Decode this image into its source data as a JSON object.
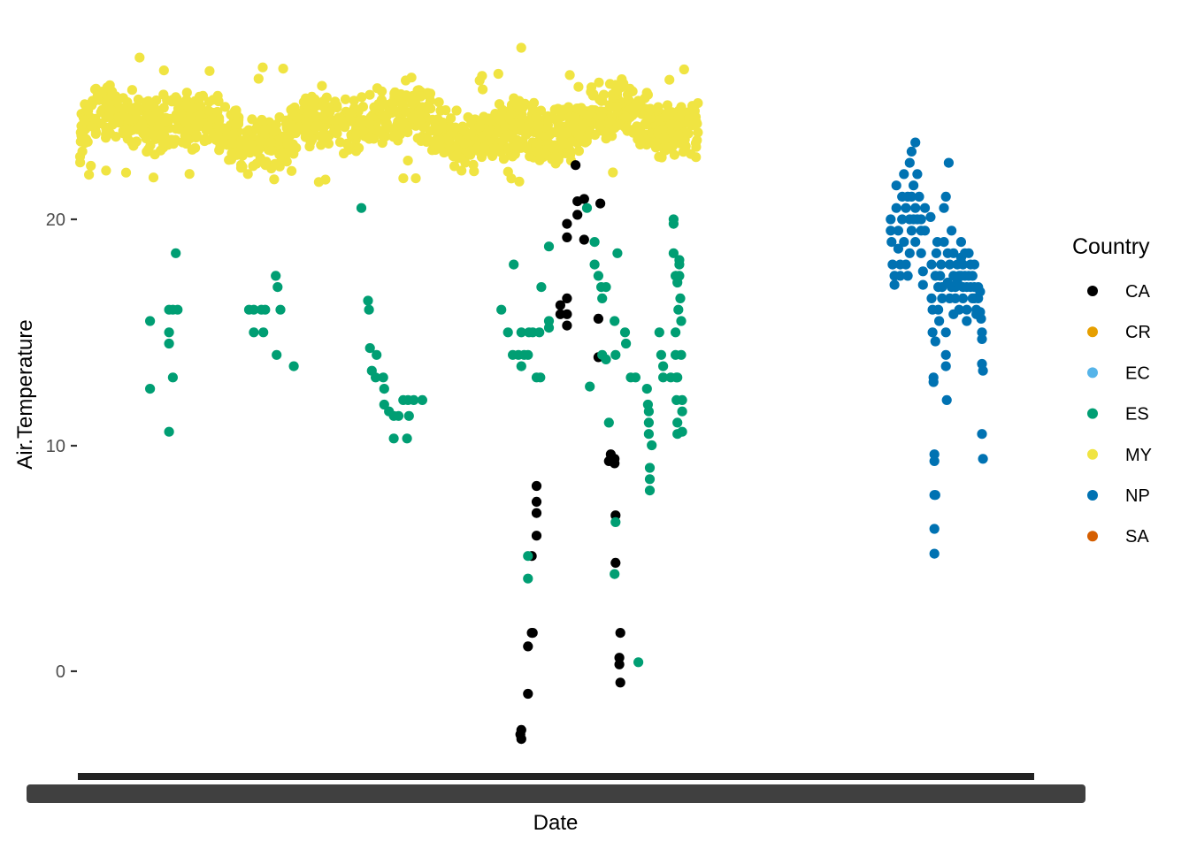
{
  "chart_data": {
    "type": "scatter",
    "title": "",
    "xlabel": "Date",
    "ylabel": "Air.Temperature",
    "ylim": [
      -3.5,
      29.0
    ],
    "y_ticks": [
      0,
      10,
      20
    ],
    "y_tick_labels": [
      "0",
      "10",
      "20"
    ],
    "x_tick_labels_note": "x-axis tick labels are overplotted into an unreadable dark band",
    "grid": false,
    "legend": {
      "title": "Country",
      "placement": "right"
    },
    "x_domain": [
      0,
      1000
    ],
    "series": [
      {
        "name": "CA",
        "color": "#000000",
        "points": [
          [
            464,
            -2.6
          ],
          [
            463,
            -2.8
          ],
          [
            464,
            -3.0
          ],
          [
            471,
            -1.0
          ],
          [
            471,
            1.1
          ],
          [
            475,
            1.7
          ],
          [
            476,
            1.7
          ],
          [
            475,
            5.1
          ],
          [
            480,
            6.0
          ],
          [
            480,
            7.0
          ],
          [
            480,
            7.5
          ],
          [
            480,
            8.2
          ],
          [
            505,
            15.8
          ],
          [
            505,
            16.2
          ],
          [
            512,
            16.5
          ],
          [
            512,
            15.8
          ],
          [
            512,
            15.3
          ],
          [
            512,
            19.2
          ],
          [
            512,
            19.8
          ],
          [
            523,
            20.2
          ],
          [
            521,
            22.4
          ],
          [
            523,
            20.8
          ],
          [
            530,
            20.9
          ],
          [
            530,
            19.1
          ],
          [
            547,
            20.7
          ],
          [
            545,
            15.6
          ],
          [
            545,
            13.9
          ],
          [
            558,
            9.6
          ],
          [
            556,
            9.3
          ],
          [
            562,
            9.4
          ],
          [
            562,
            9.2
          ],
          [
            563,
            6.9
          ],
          [
            563,
            4.8
          ],
          [
            568,
            1.7
          ],
          [
            567,
            0.6
          ],
          [
            567,
            0.3
          ],
          [
            568,
            -0.5
          ]
        ]
      },
      {
        "name": "CR",
        "color": "#E69F00",
        "points": []
      },
      {
        "name": "EC",
        "color": "#56B4E9",
        "points": []
      },
      {
        "name": "ES",
        "color": "#009E73",
        "points": [
          [
            74,
            15.5
          ],
          [
            74,
            12.5
          ],
          [
            94,
            16.0
          ],
          [
            94,
            15.0
          ],
          [
            94,
            14.5
          ],
          [
            94,
            10.6
          ],
          [
            98,
            16.0
          ],
          [
            98,
            13.0
          ],
          [
            101,
            18.5
          ],
          [
            103,
            16.0
          ],
          [
            178,
            16.0
          ],
          [
            183,
            15.0
          ],
          [
            183,
            16.0
          ],
          [
            191,
            16.0
          ],
          [
            193,
            15.0
          ],
          [
            195,
            16.0
          ],
          [
            206,
            17.5
          ],
          [
            208,
            17.0
          ],
          [
            211,
            16.0
          ],
          [
            207,
            14.0
          ],
          [
            225,
            13.5
          ],
          [
            296,
            20.5
          ],
          [
            303,
            16.4
          ],
          [
            304,
            16.0
          ],
          [
            305,
            14.3
          ],
          [
            312,
            14.0
          ],
          [
            307,
            13.3
          ],
          [
            311,
            13.0
          ],
          [
            319,
            13.0
          ],
          [
            320,
            12.5
          ],
          [
            320,
            11.8
          ],
          [
            325,
            11.5
          ],
          [
            330,
            11.3
          ],
          [
            335,
            11.3
          ],
          [
            330,
            10.3
          ],
          [
            344,
            10.3
          ],
          [
            340,
            12.0
          ],
          [
            345,
            12.0
          ],
          [
            351,
            12.0
          ],
          [
            360,
            12.0
          ],
          [
            346,
            11.3
          ],
          [
            443,
            16.0
          ],
          [
            450,
            15.0
          ],
          [
            456,
            18.0
          ],
          [
            455,
            14.0
          ],
          [
            461,
            14.0
          ],
          [
            464,
            15.0
          ],
          [
            464,
            13.5
          ],
          [
            472,
            15.0
          ],
          [
            467,
            14.0
          ],
          [
            476,
            15.0
          ],
          [
            471,
            14.0
          ],
          [
            471,
            5.1
          ],
          [
            471,
            4.1
          ],
          [
            483,
            15.0
          ],
          [
            480,
            13.0
          ],
          [
            484,
            13.0
          ],
          [
            485,
            17.0
          ],
          [
            493,
            15.5
          ],
          [
            493,
            15.2
          ],
          [
            493,
            18.8
          ],
          [
            533,
            20.5
          ],
          [
            536,
            12.6
          ],
          [
            541,
            19.0
          ],
          [
            541,
            18.0
          ],
          [
            545,
            17.5
          ],
          [
            548,
            17.0
          ],
          [
            553,
            17.0
          ],
          [
            553,
            13.8
          ],
          [
            549,
            16.5
          ],
          [
            549,
            14.0
          ],
          [
            556,
            11.0
          ],
          [
            562,
            15.5
          ],
          [
            563,
            14.0
          ],
          [
            562,
            4.3
          ],
          [
            563,
            6.6
          ],
          [
            565,
            18.5
          ],
          [
            573,
            15.0
          ],
          [
            574,
            14.5
          ],
          [
            579,
            13.0
          ],
          [
            584,
            13.0
          ],
          [
            587,
            0.4
          ],
          [
            596,
            12.5
          ],
          [
            597,
            11.8
          ],
          [
            598,
            11.0
          ],
          [
            598,
            10.5
          ],
          [
            598,
            11.5
          ],
          [
            599,
            9.0
          ],
          [
            599,
            8.5
          ],
          [
            599,
            8.0
          ],
          [
            601,
            10.0
          ],
          [
            609,
            15.0
          ],
          [
            611,
            14.0
          ],
          [
            613,
            13.0
          ],
          [
            613,
            13.5
          ],
          [
            621,
            13.0
          ],
          [
            624,
            20.0
          ],
          [
            624,
            19.8
          ],
          [
            624,
            18.5
          ],
          [
            626,
            17.5
          ],
          [
            626,
            15.0
          ],
          [
            626,
            14.0
          ],
          [
            627,
            13.0
          ],
          [
            627,
            12.0
          ],
          [
            628,
            11.0
          ],
          [
            628,
            10.5
          ],
          [
            630,
            18.2
          ],
          [
            630,
            17.5
          ],
          [
            631,
            16.5
          ],
          [
            632,
            15.5
          ],
          [
            632,
            14.0
          ],
          [
            633,
            12.0
          ],
          [
            633,
            11.5
          ],
          [
            633,
            10.6
          ],
          [
            628,
            13.0
          ],
          [
            630,
            18.0
          ],
          [
            628,
            17.2
          ],
          [
            629,
            16.0
          ]
        ]
      },
      {
        "name": "MY",
        "color": "#F0E442",
        "points": []
      },
      {
        "name": "NP",
        "color": "#0072B2",
        "points": [
          [
            852,
            20.0
          ],
          [
            852,
            19.5
          ],
          [
            853,
            19.0
          ],
          [
            854,
            18.0
          ],
          [
            856,
            17.5
          ],
          [
            856,
            17.1
          ],
          [
            858,
            20.5
          ],
          [
            858,
            21.5
          ],
          [
            860,
            19.5
          ],
          [
            860,
            18.7
          ],
          [
            862,
            18.0
          ],
          [
            862,
            17.5
          ],
          [
            864,
            21.0
          ],
          [
            864,
            20.0
          ],
          [
            866,
            22.0
          ],
          [
            866,
            19.0
          ],
          [
            868,
            20.5
          ],
          [
            868,
            18.0
          ],
          [
            870,
            21.0
          ],
          [
            870,
            17.5
          ],
          [
            872,
            22.5
          ],
          [
            872,
            20.0
          ],
          [
            872,
            18.5
          ],
          [
            874,
            23.0
          ],
          [
            874,
            21.0
          ],
          [
            874,
            19.5
          ],
          [
            876,
            21.5
          ],
          [
            876,
            20.0
          ],
          [
            878,
            23.4
          ],
          [
            878,
            20.5
          ],
          [
            878,
            19.0
          ],
          [
            880,
            22.0
          ],
          [
            880,
            20.0
          ],
          [
            882,
            21.0
          ],
          [
            884,
            20.0
          ],
          [
            884,
            19.5
          ],
          [
            884,
            18.5
          ],
          [
            886,
            17.7
          ],
          [
            886,
            17.1
          ],
          [
            888,
            20.5
          ],
          [
            888,
            19.5
          ],
          [
            894,
            20.1
          ],
          [
            895,
            18.0
          ],
          [
            895,
            16.5
          ],
          [
            896,
            16.0
          ],
          [
            896,
            15.0
          ],
          [
            897,
            13.0
          ],
          [
            897,
            12.8
          ],
          [
            898,
            9.6
          ],
          [
            898,
            9.3
          ],
          [
            898,
            7.8
          ],
          [
            899,
            7.8
          ],
          [
            898,
            6.3
          ],
          [
            898,
            5.2
          ],
          [
            899,
            14.6
          ],
          [
            899,
            17.5
          ],
          [
            900,
            18.5
          ],
          [
            901,
            19.0
          ],
          [
            902,
            17.0
          ],
          [
            902,
            16.0
          ],
          [
            903,
            15.5
          ],
          [
            904,
            17.5
          ],
          [
            905,
            18.0
          ],
          [
            906,
            17.0
          ],
          [
            906,
            16.5
          ],
          [
            908,
            20.5
          ],
          [
            908,
            19.0
          ],
          [
            910,
            21.0
          ],
          [
            910,
            15.0
          ],
          [
            910,
            14.0
          ],
          [
            910,
            13.5
          ],
          [
            911,
            12.0
          ],
          [
            912,
            18.5
          ],
          [
            912,
            17.2
          ],
          [
            913,
            22.5
          ],
          [
            914,
            18.0
          ],
          [
            914,
            16.5
          ],
          [
            916,
            19.5
          ],
          [
            916,
            17.0
          ],
          [
            918,
            18.5
          ],
          [
            918,
            17.5
          ],
          [
            918,
            15.8
          ],
          [
            920,
            17.0
          ],
          [
            920,
            16.5
          ],
          [
            922,
            18.0
          ],
          [
            922,
            17.2
          ],
          [
            924,
            17.5
          ],
          [
            924,
            16.0
          ],
          [
            926,
            19.0
          ],
          [
            926,
            18.3
          ],
          [
            926,
            17.5
          ],
          [
            928,
            18.0
          ],
          [
            928,
            17.0
          ],
          [
            928,
            16.5
          ],
          [
            930,
            18.5
          ],
          [
            930,
            17.5
          ],
          [
            932,
            17.0
          ],
          [
            932,
            16.0
          ],
          [
            932,
            15.5
          ],
          [
            934,
            18.5
          ],
          [
            934,
            17.5
          ],
          [
            936,
            18.0
          ],
          [
            936,
            17.0
          ],
          [
            938,
            17.5
          ],
          [
            938,
            16.5
          ],
          [
            940,
            18.0
          ],
          [
            940,
            17.0
          ],
          [
            940,
            16.5
          ],
          [
            942,
            16.0
          ],
          [
            942,
            15.8
          ],
          [
            944,
            17.0
          ],
          [
            944,
            16.5
          ],
          [
            946,
            16.8
          ],
          [
            946,
            15.9
          ],
          [
            947,
            15.6
          ],
          [
            948,
            15.0
          ],
          [
            948,
            14.7
          ],
          [
            948,
            13.6
          ],
          [
            949,
            13.3
          ],
          [
            948,
            10.5
          ],
          [
            949,
            9.4
          ]
        ]
      },
      {
        "name": "SA",
        "color": "#D55E00",
        "points": []
      }
    ],
    "MY_band": {
      "name": "MY",
      "color": "#F0E442",
      "x_range": [
        0,
        650
      ],
      "typical_range": [
        22.7,
        25.5
      ],
      "min": 21.6,
      "max": 27.6
    }
  }
}
